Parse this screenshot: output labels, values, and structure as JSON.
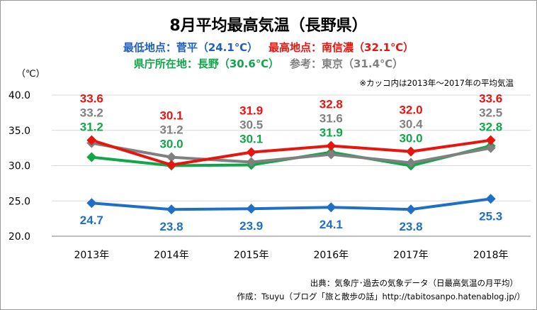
{
  "chart_data": {
    "type": "line",
    "title": "8月平均最高気温（長野県）",
    "subtitle_lines": [
      [
        {
          "text": "最低地点：菅平（24.1℃）",
          "color": "#1F5FBF"
        },
        {
          "text": "最高地点：南信濃（32.1℃）",
          "color": "#E8150F"
        }
      ],
      [
        {
          "text": "県庁所在地：長野（30.6℃）",
          "color": "#12A64A"
        },
        {
          "text": "参考：東京（31.4℃）",
          "color": "#7F7F7F"
        }
      ]
    ],
    "note": "※カッコ内は2013年～2017年の平均気温",
    "ylabel": "（℃）",
    "ylim": [
      20,
      40
    ],
    "yticks": [
      "20.0",
      "25.0",
      "30.0",
      "35.0",
      "40.0"
    ],
    "categories": [
      "2013年",
      "2014年",
      "2015年",
      "2016年",
      "2017年",
      "2018年"
    ],
    "grid": true,
    "legend": "none",
    "series": [
      {
        "id": "sugadaira",
        "values": [
          24.7,
          23.8,
          23.9,
          24.1,
          23.8,
          25.3
        ],
        "color": "#1F6FC5",
        "marker": "diamond"
      },
      {
        "id": "nagano",
        "values": [
          31.2,
          30.0,
          30.1,
          31.9,
          30.0,
          32.8
        ],
        "color": "#12A64A",
        "marker": "diamond"
      },
      {
        "id": "tokyo",
        "values": [
          33.2,
          31.2,
          30.5,
          31.6,
          30.4,
          32.5
        ],
        "color": "#808080",
        "marker": "diamond"
      },
      {
        "id": "minamishinano",
        "values": [
          33.6,
          30.1,
          31.9,
          32.8,
          32.0,
          33.6
        ],
        "color": "#E8150F",
        "marker": "diamond"
      }
    ],
    "data_labels": [
      {
        "series": "minamishinano",
        "values": [
          "33.6",
          "30.1",
          "31.9",
          "32.8",
          "32.0",
          "33.6"
        ],
        "color": "#E8150F",
        "position": "above"
      },
      {
        "series": "tokyo",
        "values": [
          "33.2",
          "31.2",
          "30.5",
          "31.6",
          "30.4",
          "32.5"
        ],
        "color": "#808080",
        "position": "above"
      },
      {
        "series": "nagano",
        "values": [
          "31.2",
          "30.0",
          "30.1",
          "31.9",
          "30.0",
          "32.8"
        ],
        "color": "#12A64A",
        "position": "above"
      },
      {
        "series": "sugadaira",
        "values": [
          "24.7",
          "23.8",
          "23.9",
          "24.1",
          "23.8",
          "25.3"
        ],
        "color": "#1F6FC5",
        "position": "below"
      }
    ]
  },
  "footer": {
    "source": "出典：気象庁･過去の気象データ（日最高気温の月平均）",
    "author": "作成：Tsuyu（ブログ「旅と散歩の話」http://tabitosanpo.hatenablog.jp/）"
  }
}
